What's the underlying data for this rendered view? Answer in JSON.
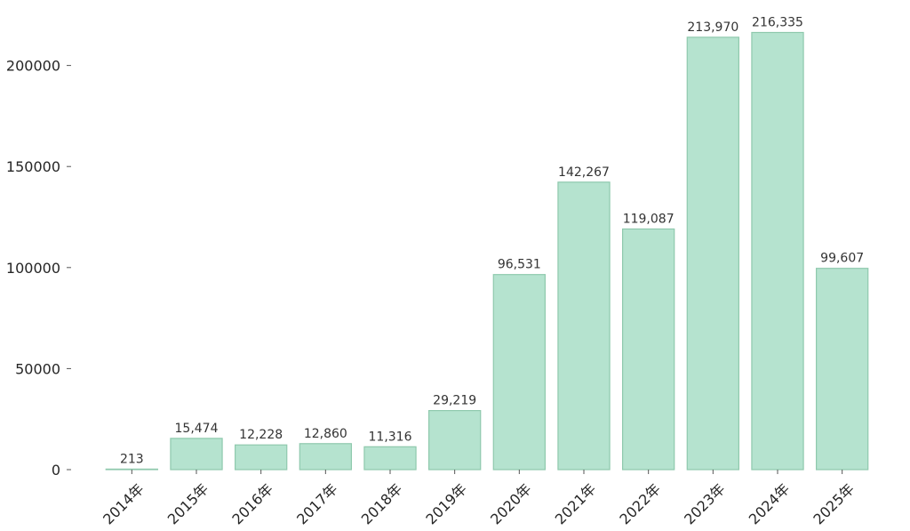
{
  "chart_data": {
    "type": "bar",
    "categories": [
      "2014年",
      "2015年",
      "2016年",
      "2017年",
      "2018年",
      "2019年",
      "2020年",
      "2021年",
      "2022年",
      "2023年",
      "2024年",
      "2025年"
    ],
    "values": [
      213,
      15474,
      12228,
      12860,
      11316,
      29219,
      96531,
      142267,
      119087,
      213970,
      216335,
      99607
    ],
    "data_labels": [
      "213",
      "15,474",
      "12,228",
      "12,860",
      "11,316",
      "29,219",
      "96,531",
      "142,267",
      "119,087",
      "213,970",
      "216,335",
      "99,607"
    ],
    "title": "",
    "xlabel": "",
    "ylabel": "",
    "ylim": [
      0,
      228000
    ],
    "yticks": [
      0,
      50000,
      100000,
      150000,
      200000
    ],
    "ytick_labels": [
      "0",
      "50000",
      "100000",
      "150000",
      "200000"
    ],
    "grid": false,
    "legend": false,
    "colors": {
      "bar_fill": "#b5e3cf",
      "bar_stroke": "#8fc9ad"
    }
  }
}
